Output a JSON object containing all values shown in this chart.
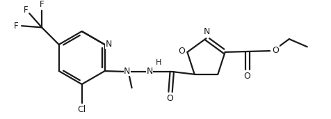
{
  "bg_color": "#ffffff",
  "line_color": "#1a1a1a",
  "line_width": 1.6,
  "font_size": 8.5,
  "fig_width": 4.77,
  "fig_height": 1.71,
  "dpi": 100,
  "xlim": [
    0,
    10
  ],
  "ylim": [
    0,
    3.6
  ]
}
